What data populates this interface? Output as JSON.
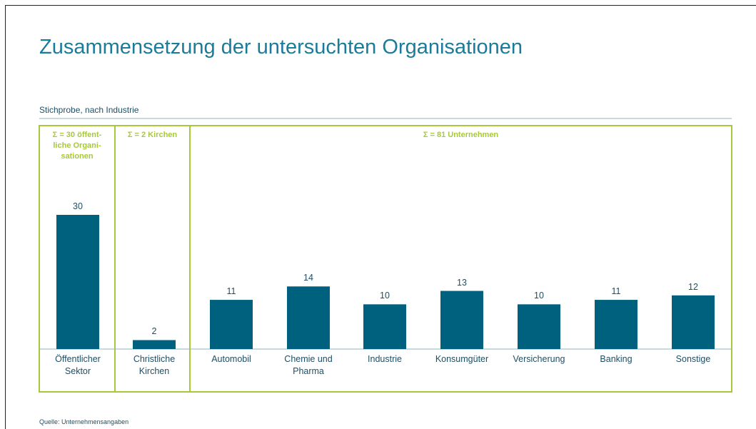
{
  "chart_data": {
    "type": "bar",
    "title": "Zusammensetzung der untersuchten Organisationen",
    "subtitle": "Stichprobe, nach Industrie",
    "source": "Quelle: Unternehmensangaben",
    "groups": [
      {
        "label": [
          "Σ = 30 öffent-",
          "liche Organi-",
          "sationen"
        ]
      },
      {
        "label": [
          "Σ = 2 Kirchen"
        ]
      },
      {
        "label": [
          "Σ = 81 Unternehmen"
        ]
      }
    ],
    "categories": [
      "Öffentlicher Sektor",
      "Christliche Kirchen",
      "Automobil",
      "Chemie und Pharma",
      "Industrie",
      "Konsumgüter",
      "Versicherung",
      "Banking",
      "Sonstige"
    ],
    "values": [
      30,
      2,
      11,
      14,
      10,
      13,
      10,
      11,
      12
    ],
    "color": "#00617f",
    "group_color": "#a8c83c"
  }
}
